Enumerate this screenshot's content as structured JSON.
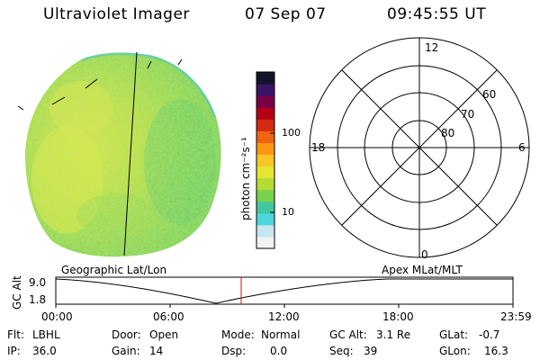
{
  "header": {
    "instrument": "Ultraviolet Imager",
    "date": "07 Sep 07",
    "time": "09:45:55 UT"
  },
  "colorbar": {
    "unit_label": "photon cm⁻²s⁻¹",
    "tick_100": "100",
    "tick_10": "10",
    "colors": [
      "#f2f2f2",
      "#c8e6f0",
      "#4cd6dc",
      "#40c8a0",
      "#7ad24a",
      "#b4dc32",
      "#e6e632",
      "#f5c828",
      "#ff9614",
      "#f06414",
      "#d22814",
      "#b40014",
      "#780046",
      "#3c1464",
      "#141428"
    ]
  },
  "polar_plot": {
    "mlt_top": "12",
    "mlt_right": "6",
    "mlt_bottom": "0",
    "mlt_left": "18",
    "lat_60": "60",
    "lat_70": "70",
    "lat_80": "80"
  },
  "coord_labels": {
    "left": "Geographic Lat/Lon",
    "right": "Apex MLat/MLT"
  },
  "altitude_strip": {
    "axis_label": "GC Alt",
    "y_max": "9.0",
    "y_min": "1.8",
    "x_ticks": [
      "00:00",
      "06:00",
      "12:00",
      "18:00",
      "23:59"
    ]
  },
  "info": {
    "filter_label": "Flt:",
    "filter_value": "LBHL",
    "door_label": "Door:",
    "door_value": "Open",
    "mode_label": "Mode:",
    "mode_value": "Normal",
    "gcalt_label": "GC Alt:",
    "gcalt_value": "3.1 Re",
    "glat_label": "GLat:",
    "glat_value": "-0.7",
    "ip_label": "IP:",
    "ip_value": "36.0",
    "gain_label": "Gain:",
    "gain_value": "14",
    "dsp_label": "Dsp:",
    "dsp_value": "0.0",
    "seq_label": "Seq:",
    "seq_value": "39",
    "glon_label": "GLon:",
    "glon_value": "16.3"
  }
}
